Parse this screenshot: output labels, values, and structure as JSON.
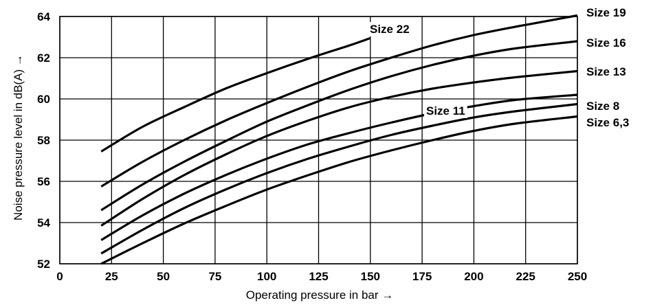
{
  "chart_data": {
    "type": "line",
    "xlabel": "Operating pressure in bar →",
    "ylabel": "Noise pressure level in dB(A) →",
    "xlim": [
      0,
      250
    ],
    "ylim": [
      52,
      64
    ],
    "xticks": [
      0,
      25,
      50,
      75,
      100,
      125,
      150,
      175,
      200,
      225,
      250
    ],
    "yticks": [
      52,
      54,
      56,
      58,
      60,
      62,
      64
    ],
    "grid": true,
    "series": [
      {
        "name": "Size 22",
        "x": [
          20,
          40,
          60,
          80,
          100,
          120,
          140,
          150
        ],
        "y": [
          57.45,
          58.65,
          59.6,
          60.5,
          61.25,
          61.95,
          62.6,
          62.95
        ]
      },
      {
        "name": "Size 19",
        "x": [
          20,
          40,
          60,
          80,
          100,
          120,
          140,
          160,
          180,
          200,
          220,
          250
        ],
        "y": [
          55.75,
          56.95,
          58.0,
          58.95,
          59.8,
          60.6,
          61.35,
          62.0,
          62.6,
          63.1,
          63.5,
          64.05
        ]
      },
      {
        "name": "Size 16",
        "x": [
          20,
          40,
          60,
          80,
          100,
          120,
          140,
          160,
          180,
          200,
          220,
          250
        ],
        "y": [
          54.6,
          55.85,
          56.95,
          57.95,
          58.9,
          59.7,
          60.45,
          61.1,
          61.65,
          62.1,
          62.45,
          62.8
        ]
      },
      {
        "name": "Size 13",
        "x": [
          20,
          40,
          60,
          80,
          100,
          120,
          140,
          160,
          180,
          200,
          220,
          250
        ],
        "y": [
          53.85,
          55.15,
          56.3,
          57.3,
          58.2,
          58.95,
          59.6,
          60.1,
          60.5,
          60.8,
          61.05,
          61.35
        ]
      },
      {
        "name": "Size 11",
        "x": [
          20,
          40,
          60,
          80,
          100,
          120,
          140,
          160,
          180,
          200,
          220,
          250
        ],
        "y": [
          53.15,
          54.35,
          55.4,
          56.3,
          57.1,
          57.8,
          58.35,
          58.85,
          59.3,
          59.65,
          59.95,
          60.2
        ]
      },
      {
        "name": "Size 8",
        "x": [
          20,
          40,
          60,
          80,
          100,
          120,
          140,
          160,
          180,
          200,
          220,
          250
        ],
        "y": [
          52.5,
          53.65,
          54.7,
          55.6,
          56.4,
          57.1,
          57.7,
          58.25,
          58.7,
          59.1,
          59.4,
          59.75
        ]
      },
      {
        "name": "Size 6,3",
        "x": [
          20,
          40,
          60,
          80,
          100,
          120,
          140,
          160,
          180,
          200,
          220,
          250
        ],
        "y": [
          52.0,
          53.0,
          53.95,
          54.8,
          55.6,
          56.3,
          56.95,
          57.5,
          58.0,
          58.45,
          58.8,
          59.15
        ]
      }
    ]
  }
}
